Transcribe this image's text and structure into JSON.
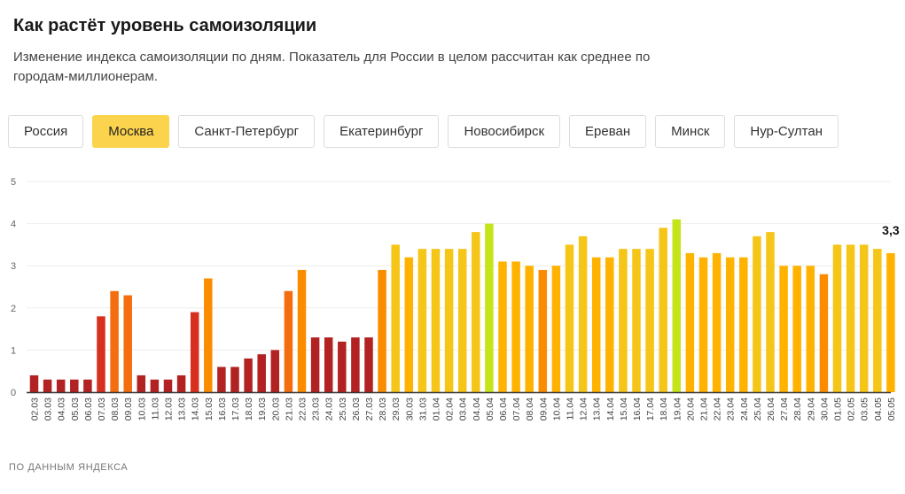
{
  "header": {
    "title": "Как растёт уровень самоизоляции",
    "subtitle": "Изменение индекса самоизоляции по дням. Показатель для России в целом рассчитан как среднее по городам-миллионерам."
  },
  "tabs": [
    {
      "label": "Россия",
      "active": false
    },
    {
      "label": "Москва",
      "active": true
    },
    {
      "label": "Санкт-Петербург",
      "active": false
    },
    {
      "label": "Екатеринбург",
      "active": false
    },
    {
      "label": "Новосибирск",
      "active": false
    },
    {
      "label": "Ереван",
      "active": false
    },
    {
      "label": "Минск",
      "active": false
    },
    {
      "label": "Нур-Султан",
      "active": false
    }
  ],
  "source": "ПО ДАННЫМ ЯНДЕКСА",
  "colors": {
    "accent_tab": "#fcd34d",
    "scale": [
      "#b22222",
      "#d7301f",
      "#f46d0f",
      "#fb8c00",
      "#ffb300",
      "#f5c518",
      "#c6e41a"
    ]
  },
  "chart_data": {
    "type": "bar",
    "ylim": [
      0,
      5
    ],
    "yticks": [
      0,
      1,
      2,
      3,
      4,
      5
    ],
    "grid": true,
    "categories": [
      "02.03",
      "03.03",
      "04.03",
      "05.03",
      "06.03",
      "07.03",
      "08.03",
      "09.03",
      "10.03",
      "11.03",
      "12.03",
      "13.03",
      "14.03",
      "15.03",
      "16.03",
      "17.03",
      "18.03",
      "19.03",
      "20.03",
      "21.03",
      "22.03",
      "23.03",
      "24.03",
      "25.03",
      "26.03",
      "27.03",
      "28.03",
      "29.03",
      "30.03",
      "31.03",
      "01.04",
      "02.04",
      "03.04",
      "04.04",
      "05.04",
      "06.04",
      "07.04",
      "08.04",
      "09.04",
      "10.04",
      "11.04",
      "12.04",
      "13.04",
      "14.04",
      "15.04",
      "16.04",
      "17.04",
      "18.04",
      "19.04",
      "20.04",
      "21.04",
      "22.04",
      "23.04",
      "24.04",
      "25.04",
      "26.04",
      "27.04",
      "28.04",
      "29.04",
      "30.04",
      "01.05",
      "02.05",
      "03.05",
      "04.05",
      "05.05"
    ],
    "values": [
      0.4,
      0.3,
      0.3,
      0.3,
      0.3,
      1.8,
      2.4,
      2.3,
      0.4,
      0.3,
      0.3,
      0.4,
      1.9,
      2.7,
      0.6,
      0.6,
      0.8,
      0.9,
      1.0,
      2.4,
      2.9,
      1.3,
      1.3,
      1.2,
      1.3,
      1.3,
      2.9,
      3.5,
      3.2,
      3.4,
      3.4,
      3.4,
      3.4,
      3.8,
      4.0,
      3.1,
      3.1,
      3.0,
      2.9,
      3.0,
      3.5,
      3.7,
      3.2,
      3.2,
      3.4,
      3.4,
      3.4,
      3.9,
      4.1,
      3.3,
      3.2,
      3.3,
      3.2,
      3.2,
      3.7,
      3.8,
      3.0,
      3.0,
      3.0,
      2.8,
      3.5,
      3.5,
      3.5,
      3.4,
      3.3
    ],
    "highlight_label": "3,3"
  }
}
